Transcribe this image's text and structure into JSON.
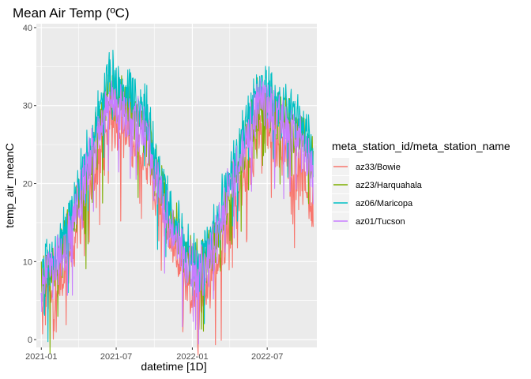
{
  "chart_data": {
    "type": "line",
    "title": "Mean Air Temp (ºC)",
    "xlabel": "datetime [1D]",
    "ylabel": "temp_air_meanC",
    "xlim": [
      "2020-12-20",
      "2022-10-29"
    ],
    "ylim": [
      -1,
      40.5
    ],
    "x_ticks": [
      "2021-01",
      "2021-07",
      "2022-01",
      "2022-07"
    ],
    "y_ticks": [
      0,
      10,
      20,
      30,
      40
    ],
    "grid": true,
    "legend": {
      "title": "meta_station_id/meta_station_name",
      "position": "right"
    },
    "date_range": [
      "2021-01-01",
      "2022-10-20"
    ],
    "series": [
      {
        "name": "az33/Bowie",
        "color": "#F8766D",
        "points": [
          [
            "2021-01-01",
            3
          ],
          [
            "2021-01-15",
            6
          ],
          [
            "2021-02-01",
            5
          ],
          [
            "2021-02-15",
            8
          ],
          [
            "2021-03-01",
            9
          ],
          [
            "2021-03-15",
            11
          ],
          [
            "2021-04-01",
            15
          ],
          [
            "2021-04-15",
            17
          ],
          [
            "2021-05-01",
            20
          ],
          [
            "2021-05-15",
            23
          ],
          [
            "2021-06-01",
            25
          ],
          [
            "2021-06-15",
            28
          ],
          [
            "2021-07-01",
            28
          ],
          [
            "2021-07-15",
            27
          ],
          [
            "2021-08-01",
            26
          ],
          [
            "2021-08-15",
            25
          ],
          [
            "2021-09-01",
            24
          ],
          [
            "2021-09-15",
            23
          ],
          [
            "2021-10-01",
            19
          ],
          [
            "2021-10-15",
            17
          ],
          [
            "2021-11-01",
            14
          ],
          [
            "2021-11-15",
            12
          ],
          [
            "2021-12-01",
            10
          ],
          [
            "2021-12-15",
            8
          ],
          [
            "2022-01-01",
            6
          ],
          [
            "2022-01-15",
            5
          ],
          [
            "2022-02-01",
            6
          ],
          [
            "2022-02-15",
            8
          ],
          [
            "2022-03-01",
            10
          ],
          [
            "2022-03-15",
            12
          ],
          [
            "2022-04-01",
            15
          ],
          [
            "2022-04-15",
            17
          ],
          [
            "2022-05-01",
            20
          ],
          [
            "2022-05-15",
            22
          ],
          [
            "2022-06-01",
            25
          ],
          [
            "2022-06-15",
            27
          ],
          [
            "2022-07-01",
            27
          ],
          [
            "2022-07-15",
            26
          ],
          [
            "2022-08-01",
            25
          ],
          [
            "2022-08-15",
            24
          ],
          [
            "2022-09-01",
            23
          ],
          [
            "2022-09-15",
            22
          ],
          [
            "2022-10-01",
            20
          ],
          [
            "2022-10-20",
            16
          ]
        ]
      },
      {
        "name": "az23/Harquahala",
        "color": "#7CAE00",
        "points": [
          [
            "2021-01-01",
            7
          ],
          [
            "2021-01-15",
            9
          ],
          [
            "2021-02-01",
            9
          ],
          [
            "2021-02-15",
            11
          ],
          [
            "2021-03-01",
            13
          ],
          [
            "2021-03-15",
            15
          ],
          [
            "2021-04-01",
            18
          ],
          [
            "2021-04-15",
            20
          ],
          [
            "2021-05-01",
            23
          ],
          [
            "2021-05-15",
            26
          ],
          [
            "2021-06-01",
            29
          ],
          [
            "2021-06-15",
            32
          ],
          [
            "2021-07-01",
            31
          ],
          [
            "2021-07-15",
            30
          ],
          [
            "2021-08-01",
            30
          ],
          [
            "2021-08-15",
            29
          ],
          [
            "2021-09-01",
            28
          ],
          [
            "2021-09-15",
            27
          ],
          [
            "2021-10-01",
            22
          ],
          [
            "2021-10-15",
            20
          ],
          [
            "2021-11-01",
            17
          ],
          [
            "2021-11-15",
            15
          ],
          [
            "2021-12-01",
            13
          ],
          [
            "2021-12-15",
            11
          ],
          [
            "2022-01-01",
            10
          ],
          [
            "2022-01-15",
            9
          ],
          [
            "2022-02-01",
            10
          ],
          [
            "2022-02-15",
            12
          ],
          [
            "2022-03-01",
            14
          ],
          [
            "2022-03-15",
            16
          ],
          [
            "2022-04-01",
            19
          ],
          [
            "2022-04-15",
            21
          ],
          [
            "2022-05-01",
            24
          ],
          [
            "2022-05-15",
            26
          ],
          [
            "2022-06-01",
            29
          ],
          [
            "2022-06-15",
            31
          ],
          [
            "2022-07-01",
            30
          ],
          [
            "2022-07-15",
            29
          ],
          [
            "2022-08-01",
            29
          ],
          [
            "2022-08-15",
            28
          ],
          [
            "2022-09-01",
            27
          ],
          [
            "2022-09-15",
            27
          ],
          [
            "2022-10-01",
            25
          ],
          [
            "2022-10-20",
            22
          ]
        ]
      },
      {
        "name": "az06/Maricopa",
        "color": "#00BFC4",
        "points": [
          [
            "2021-01-01",
            8
          ],
          [
            "2021-01-15",
            10
          ],
          [
            "2021-02-01",
            10
          ],
          [
            "2021-02-15",
            12
          ],
          [
            "2021-03-01",
            14
          ],
          [
            "2021-03-15",
            16
          ],
          [
            "2021-04-01",
            20
          ],
          [
            "2021-04-15",
            22
          ],
          [
            "2021-05-01",
            25
          ],
          [
            "2021-05-15",
            28
          ],
          [
            "2021-06-01",
            31
          ],
          [
            "2021-06-15",
            34
          ],
          [
            "2021-07-01",
            33
          ],
          [
            "2021-07-15",
            32
          ],
          [
            "2021-08-01",
            32
          ],
          [
            "2021-08-15",
            31
          ],
          [
            "2021-09-01",
            30
          ],
          [
            "2021-09-15",
            29
          ],
          [
            "2021-10-01",
            24
          ],
          [
            "2021-10-15",
            21
          ],
          [
            "2021-11-01",
            18
          ],
          [
            "2021-11-15",
            16
          ],
          [
            "2021-12-01",
            14
          ],
          [
            "2021-12-15",
            12
          ],
          [
            "2022-01-01",
            11
          ],
          [
            "2022-01-15",
            10
          ],
          [
            "2022-02-01",
            11
          ],
          [
            "2022-02-15",
            13
          ],
          [
            "2022-03-01",
            15
          ],
          [
            "2022-03-15",
            18
          ],
          [
            "2022-04-01",
            21
          ],
          [
            "2022-04-15",
            23
          ],
          [
            "2022-05-01",
            26
          ],
          [
            "2022-05-15",
            28
          ],
          [
            "2022-06-01",
            31
          ],
          [
            "2022-06-15",
            33
          ],
          [
            "2022-07-01",
            32
          ],
          [
            "2022-07-15",
            31
          ],
          [
            "2022-08-01",
            30
          ],
          [
            "2022-08-15",
            29
          ],
          [
            "2022-09-01",
            29
          ],
          [
            "2022-09-15",
            28
          ],
          [
            "2022-10-01",
            27
          ],
          [
            "2022-10-20",
            23
          ]
        ]
      },
      {
        "name": "az01/Tucson",
        "color": "#C77CFF",
        "points": [
          [
            "2021-01-01",
            7
          ],
          [
            "2021-01-15",
            9
          ],
          [
            "2021-02-01",
            9
          ],
          [
            "2021-02-15",
            11
          ],
          [
            "2021-03-01",
            12
          ],
          [
            "2021-03-15",
            15
          ],
          [
            "2021-04-01",
            18
          ],
          [
            "2021-04-15",
            20
          ],
          [
            "2021-05-01",
            23
          ],
          [
            "2021-05-15",
            26
          ],
          [
            "2021-06-01",
            29
          ],
          [
            "2021-06-15",
            31
          ],
          [
            "2021-07-01",
            30
          ],
          [
            "2021-07-15",
            29
          ],
          [
            "2021-08-01",
            29
          ],
          [
            "2021-08-15",
            28
          ],
          [
            "2021-09-01",
            27
          ],
          [
            "2021-09-15",
            26
          ],
          [
            "2021-10-01",
            21
          ],
          [
            "2021-10-15",
            19
          ],
          [
            "2021-11-01",
            16
          ],
          [
            "2021-11-15",
            14
          ],
          [
            "2021-12-01",
            12
          ],
          [
            "2021-12-15",
            10
          ],
          [
            "2022-01-01",
            9
          ],
          [
            "2022-01-15",
            8
          ],
          [
            "2022-02-01",
            9
          ],
          [
            "2022-02-15",
            11
          ],
          [
            "2022-03-01",
            13
          ],
          [
            "2022-03-15",
            16
          ],
          [
            "2022-04-01",
            19
          ],
          [
            "2022-04-15",
            21
          ],
          [
            "2022-05-01",
            24
          ],
          [
            "2022-05-15",
            26
          ],
          [
            "2022-06-01",
            29
          ],
          [
            "2022-06-15",
            31
          ],
          [
            "2022-07-01",
            30
          ],
          [
            "2022-07-15",
            29
          ],
          [
            "2022-08-01",
            28
          ],
          [
            "2022-08-15",
            27
          ],
          [
            "2022-09-01",
            27
          ],
          [
            "2022-09-15",
            26
          ],
          [
            "2022-10-01",
            24
          ],
          [
            "2022-10-20",
            21
          ]
        ]
      }
    ]
  }
}
